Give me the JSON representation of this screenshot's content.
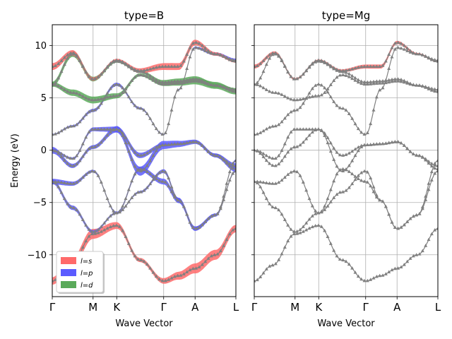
{
  "chart_data": [
    {
      "type": "line",
      "title": "type=B",
      "xlabel": "Wave Vector",
      "ylabel": "Energy (eV)",
      "ylim": [
        -14,
        12
      ],
      "yticks": [
        10,
        5,
        0,
        -5,
        -10
      ],
      "kpath_ticks": [
        {
          "label": "Γ",
          "k": 0.0
        },
        {
          "label": "M",
          "k": 1.0
        },
        {
          "label": "K",
          "k": 1.58
        },
        {
          "label": "Γ",
          "k": 2.73
        },
        {
          "label": "A",
          "k": 3.5
        },
        {
          "label": "L",
          "k": 4.5
        }
      ],
      "grid": true,
      "legend": {
        "placement": "lower-left",
        "entries": [
          "l=s",
          "l=p",
          "l=d"
        ]
      },
      "colors": {
        "s": "#ff6a6a",
        "p": "#5b5bff",
        "d": "#5aaa5a",
        "band": "#808080"
      },
      "bands": [
        {
          "k": [
            0,
            0.45,
            1.0,
            1.58,
            2.15,
            2.73,
            3.1,
            3.5,
            4.0,
            4.5
          ],
          "e": [
            -12.5,
            -11.0,
            -8.0,
            -7.2,
            -10.5,
            -12.5,
            -12.0,
            -11.3,
            -10.0,
            -7.5
          ],
          "orbital": "s",
          "weight": 0.9
        },
        {
          "k": [
            0,
            0.5,
            1.0,
            1.58,
            2.15,
            2.73,
            3.1,
            3.5,
            4.0,
            4.5
          ],
          "e": [
            -3.0,
            -5.5,
            -7.8,
            -6.0,
            -4.0,
            -2.0,
            -4.8,
            -7.5,
            -6.2,
            -2.0
          ],
          "orbital": "p",
          "weight": 0.4
        },
        {
          "k": [
            0,
            0.5,
            1.0,
            1.58,
            2.15,
            2.73,
            3.1,
            3.5,
            4.0,
            4.5
          ],
          "e": [
            -3.0,
            -3.2,
            -2.0,
            -6.0,
            -1.8,
            -3.0,
            -4.8,
            -7.5,
            -6.2,
            -1.0
          ],
          "orbital": "p",
          "weight": 0.5
        },
        {
          "k": [
            0,
            0.5,
            1.0,
            1.58,
            2.15,
            2.73,
            3.1,
            3.5,
            4.0,
            4.5
          ],
          "e": [
            0.0,
            -1.5,
            0.3,
            2.0,
            -2.0,
            0.5,
            0.6,
            0.8,
            -0.5,
            -1.8
          ],
          "orbital": "p",
          "weight": 0.8
        },
        {
          "k": [
            0,
            0.5,
            1.0,
            1.58,
            2.15,
            2.73,
            3.1,
            3.5,
            4.0,
            4.5
          ],
          "e": [
            0.0,
            -0.8,
            2.0,
            2.0,
            -0.5,
            0.5,
            0.6,
            0.8,
            -0.5,
            -1.5
          ],
          "orbital": "p",
          "weight": 0.5
        },
        {
          "k": [
            0,
            0.5,
            1.0,
            1.58,
            2.15,
            2.73,
            3.1,
            3.5,
            4.0,
            4.5
          ],
          "e": [
            1.5,
            2.3,
            3.8,
            6.3,
            4.0,
            1.5,
            5.8,
            9.8,
            9.2,
            8.6
          ],
          "orbital": "p",
          "weight": 0.3
        },
        {
          "k": [
            0,
            0.5,
            1.0,
            1.58,
            2.15,
            2.73,
            3.1,
            3.5,
            4.0,
            4.5
          ],
          "e": [
            6.3,
            5.5,
            4.8,
            5.2,
            7.2,
            6.3,
            6.4,
            6.6,
            6.2,
            5.6
          ],
          "orbital": "d",
          "weight": 0.6
        },
        {
          "k": [
            0,
            0.5,
            1.0,
            1.58,
            2.15,
            2.73,
            3.1,
            3.5,
            4.0,
            4.5
          ],
          "e": [
            6.3,
            9.2,
            6.8,
            8.5,
            7.5,
            6.5,
            6.6,
            6.8,
            6.2,
            5.8
          ],
          "orbital": "d",
          "weight": 0.5
        },
        {
          "k": [
            0,
            0.5,
            1.0,
            1.58,
            2.15,
            2.73,
            3.1,
            3.5,
            4.0,
            4.5
          ],
          "e": [
            8.0,
            9.3,
            6.8,
            8.6,
            7.6,
            8.0,
            8.0,
            10.3,
            9.2,
            8.5
          ],
          "orbital": "s",
          "weight": 0.6
        }
      ]
    },
    {
      "type": "line",
      "title": "type=Mg",
      "xlabel": "Wave Vector",
      "ylabel": "",
      "ylim": [
        -14,
        12
      ],
      "kpath_ticks": [
        {
          "label": "Γ",
          "k": 0.0
        },
        {
          "label": "M",
          "k": 1.0
        },
        {
          "label": "K",
          "k": 1.58
        },
        {
          "label": "Γ",
          "k": 2.73
        },
        {
          "label": "A",
          "k": 3.5
        },
        {
          "label": "L",
          "k": 4.5
        }
      ],
      "grid": true,
      "colors": {
        "s": "#ff6a6a",
        "band": "#808080"
      },
      "bands": [
        {
          "k": [
            0,
            0.45,
            1.0,
            1.58,
            2.15,
            2.73,
            3.1,
            3.5,
            4.0,
            4.5
          ],
          "e": [
            -12.5,
            -11.0,
            -8.0,
            -7.2,
            -10.5,
            -12.5,
            -12.0,
            -11.3,
            -10.0,
            -7.5
          ],
          "orbital": "none",
          "weight": 0
        },
        {
          "k": [
            0,
            0.5,
            1.0,
            1.58,
            2.15,
            2.73,
            3.1,
            3.5,
            4.0,
            4.5
          ],
          "e": [
            -3.0,
            -5.5,
            -7.8,
            -6.0,
            -4.0,
            -2.0,
            -4.8,
            -7.5,
            -6.2,
            -2.0
          ],
          "orbital": "none",
          "weight": 0
        },
        {
          "k": [
            0,
            0.5,
            1.0,
            1.58,
            2.15,
            2.73,
            3.1,
            3.5,
            4.0,
            4.5
          ],
          "e": [
            -3.0,
            -3.2,
            -2.0,
            -6.0,
            -1.8,
            -3.0,
            -4.8,
            -7.5,
            -6.2,
            -1.0
          ],
          "orbital": "none",
          "weight": 0
        },
        {
          "k": [
            0,
            0.5,
            1.0,
            1.58,
            2.15,
            2.73,
            3.1,
            3.5,
            4.0,
            4.5
          ],
          "e": [
            0.0,
            -1.5,
            0.3,
            2.0,
            -2.0,
            0.5,
            0.6,
            0.8,
            -0.5,
            -1.8
          ],
          "orbital": "none",
          "weight": 0
        },
        {
          "k": [
            0,
            0.5,
            1.0,
            1.58,
            2.15,
            2.73,
            3.1,
            3.5,
            4.0,
            4.5
          ],
          "e": [
            0.0,
            -0.8,
            2.0,
            2.0,
            -0.5,
            0.5,
            0.6,
            0.8,
            -0.5,
            -1.5
          ],
          "orbital": "none",
          "weight": 0
        },
        {
          "k": [
            0,
            0.5,
            1.0,
            1.58,
            2.15,
            2.73,
            3.1,
            3.5,
            4.0,
            4.5
          ],
          "e": [
            1.5,
            2.3,
            3.8,
            6.3,
            4.0,
            1.5,
            5.8,
            9.8,
            9.2,
            8.6
          ],
          "orbital": "none",
          "weight": 0
        },
        {
          "k": [
            0,
            0.5,
            1.0,
            1.58,
            2.15,
            2.73,
            3.1,
            3.5,
            4.0,
            4.5
          ],
          "e": [
            6.3,
            5.5,
            4.8,
            5.2,
            7.2,
            6.3,
            6.4,
            6.6,
            6.2,
            5.6
          ],
          "orbital": "none",
          "weight": 0
        },
        {
          "k": [
            0,
            0.5,
            1.0,
            1.58,
            2.15,
            2.73,
            3.1,
            3.5,
            4.0,
            4.5
          ],
          "e": [
            6.3,
            9.2,
            6.8,
            8.5,
            7.5,
            6.5,
            6.6,
            6.8,
            6.2,
            5.8
          ],
          "orbital": "none",
          "weight": 0
        },
        {
          "k": [
            0,
            0.5,
            1.0,
            1.58,
            2.15,
            2.73,
            3.1,
            3.5,
            4.0,
            4.5
          ],
          "e": [
            8.0,
            9.3,
            6.8,
            8.6,
            7.6,
            8.0,
            8.0,
            10.3,
            9.2,
            8.5
          ],
          "orbital": "s",
          "weight": 0.35
        }
      ]
    }
  ]
}
